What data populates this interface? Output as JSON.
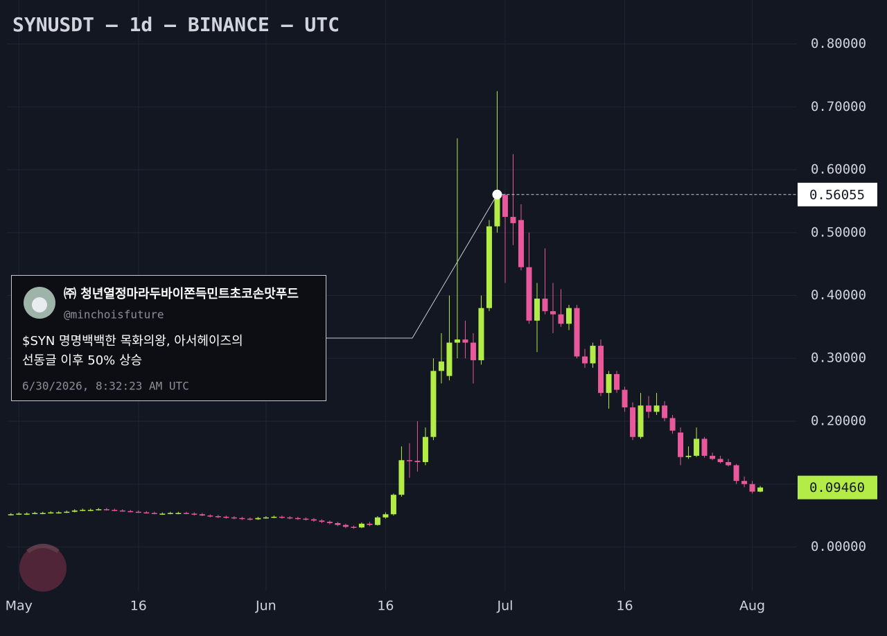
{
  "chart_data": {
    "type": "candlestick",
    "title": "SYNUSDT — 1d — BINANCE — UTC",
    "up_color": "#b3ec46",
    "down_color": "#e8589a",
    "grid": true,
    "x": [
      -1,
      0,
      1,
      2,
      3,
      4,
      5,
      6,
      7,
      8,
      9,
      10,
      11,
      12,
      13,
      14,
      15,
      16,
      17,
      18,
      19,
      20,
      21,
      22,
      23,
      24,
      25,
      26,
      27,
      28,
      29,
      30,
      31,
      32,
      33,
      34,
      35,
      36,
      37,
      38,
      39,
      40,
      41,
      42,
      43,
      44,
      45,
      46,
      47,
      48,
      49,
      50,
      51,
      52,
      53,
      54,
      55,
      56,
      57,
      58,
      59,
      60,
      61,
      62,
      63,
      64,
      65,
      66,
      67,
      68,
      69,
      70,
      71,
      72,
      73,
      74,
      75,
      76,
      77,
      78,
      79,
      80,
      81,
      82,
      83,
      84,
      85,
      86,
      87,
      88,
      89,
      90,
      91,
      92,
      93
    ],
    "open": [
      0.051,
      0.052,
      0.053,
      0.053,
      0.054,
      0.054,
      0.055,
      0.055,
      0.056,
      0.058,
      0.059,
      0.059,
      0.06,
      0.059,
      0.058,
      0.057,
      0.056,
      0.055,
      0.054,
      0.053,
      0.053,
      0.054,
      0.054,
      0.053,
      0.052,
      0.05,
      0.049,
      0.048,
      0.047,
      0.046,
      0.045,
      0.044,
      0.046,
      0.047,
      0.048,
      0.047,
      0.046,
      0.045,
      0.044,
      0.042,
      0.04,
      0.038,
      0.035,
      0.032,
      0.031,
      0.037,
      0.035,
      0.047,
      0.052,
      0.083,
      0.138,
      0.137,
      0.135,
      0.175,
      0.28,
      0.272,
      0.325,
      0.33,
      0.325,
      0.297,
      0.38,
      0.51,
      0.56,
      0.525,
      0.52,
      0.445,
      0.36,
      0.395,
      0.375,
      0.37,
      0.355,
      0.38,
      0.303,
      0.292,
      0.32,
      0.245,
      0.275,
      0.25,
      0.222,
      0.175,
      0.225,
      0.215,
      0.225,
      0.205,
      0.182,
      0.143,
      0.145,
      0.172,
      0.145,
      0.14,
      0.135,
      0.13,
      0.105,
      0.1,
      0.088
    ],
    "high": [
      0.054,
      0.055,
      0.055,
      0.056,
      0.056,
      0.057,
      0.057,
      0.058,
      0.06,
      0.061,
      0.061,
      0.062,
      0.062,
      0.061,
      0.06,
      0.059,
      0.058,
      0.057,
      0.056,
      0.055,
      0.056,
      0.056,
      0.056,
      0.055,
      0.054,
      0.052,
      0.051,
      0.05,
      0.049,
      0.048,
      0.047,
      0.048,
      0.049,
      0.05,
      0.05,
      0.049,
      0.048,
      0.047,
      0.046,
      0.044,
      0.042,
      0.04,
      0.037,
      0.034,
      0.039,
      0.04,
      0.049,
      0.055,
      0.085,
      0.16,
      0.165,
      0.2,
      0.19,
      0.3,
      0.34,
      0.4,
      0.65,
      0.36,
      0.34,
      0.4,
      0.52,
      0.725,
      0.562,
      0.625,
      0.545,
      0.5,
      0.42,
      0.475,
      0.42,
      0.41,
      0.385,
      0.385,
      0.315,
      0.325,
      0.33,
      0.28,
      0.28,
      0.255,
      0.23,
      0.245,
      0.24,
      0.245,
      0.232,
      0.21,
      0.19,
      0.16,
      0.19,
      0.175,
      0.15,
      0.145,
      0.14,
      0.132,
      0.112,
      0.105,
      0.097
    ],
    "low": [
      0.05,
      0.051,
      0.051,
      0.052,
      0.052,
      0.053,
      0.053,
      0.054,
      0.055,
      0.057,
      0.057,
      0.058,
      0.058,
      0.057,
      0.056,
      0.055,
      0.054,
      0.053,
      0.052,
      0.051,
      0.052,
      0.052,
      0.052,
      0.05,
      0.049,
      0.047,
      0.046,
      0.045,
      0.044,
      0.043,
      0.042,
      0.043,
      0.045,
      0.046,
      0.045,
      0.044,
      0.043,
      0.042,
      0.04,
      0.038,
      0.036,
      0.033,
      0.03,
      0.029,
      0.03,
      0.033,
      0.034,
      0.045,
      0.05,
      0.08,
      0.11,
      0.12,
      0.13,
      0.17,
      0.26,
      0.265,
      0.3,
      0.3,
      0.26,
      0.29,
      0.375,
      0.5,
      0.42,
      0.48,
      0.44,
      0.355,
      0.31,
      0.37,
      0.34,
      0.35,
      0.345,
      0.3,
      0.285,
      0.285,
      0.24,
      0.22,
      0.245,
      0.215,
      0.17,
      0.172,
      0.205,
      0.21,
      0.2,
      0.18,
      0.13,
      0.14,
      0.143,
      0.142,
      0.138,
      0.133,
      0.128,
      0.1,
      0.095,
      0.085,
      0.087
    ],
    "close": [
      0.052,
      0.053,
      0.053,
      0.054,
      0.054,
      0.055,
      0.055,
      0.056,
      0.058,
      0.059,
      0.059,
      0.06,
      0.059,
      0.058,
      0.057,
      0.056,
      0.055,
      0.054,
      0.053,
      0.053,
      0.054,
      0.054,
      0.053,
      0.052,
      0.05,
      0.049,
      0.048,
      0.047,
      0.046,
      0.045,
      0.044,
      0.046,
      0.047,
      0.048,
      0.047,
      0.046,
      0.045,
      0.044,
      0.042,
      0.04,
      0.038,
      0.035,
      0.032,
      0.031,
      0.037,
      0.035,
      0.047,
      0.052,
      0.083,
      0.138,
      0.137,
      0.135,
      0.175,
      0.28,
      0.295,
      0.325,
      0.33,
      0.325,
      0.297,
      0.38,
      0.51,
      0.556,
      0.525,
      0.515,
      0.445,
      0.36,
      0.395,
      0.375,
      0.37,
      0.355,
      0.38,
      0.303,
      0.292,
      0.32,
      0.245,
      0.275,
      0.25,
      0.222,
      0.175,
      0.225,
      0.215,
      0.225,
      0.205,
      0.185,
      0.143,
      0.145,
      0.172,
      0.145,
      0.14,
      0.135,
      0.13,
      0.105,
      0.1,
      0.088,
      0.0946
    ],
    "xlim": [
      -1.5,
      97.6
    ],
    "xticks": [
      {
        "value": 0,
        "label": "May"
      },
      {
        "value": 15,
        "label": "16"
      },
      {
        "value": 31,
        "label": "Jun"
      },
      {
        "value": 46,
        "label": "16"
      },
      {
        "value": 61,
        "label": "Jul"
      },
      {
        "value": 76,
        "label": "16"
      },
      {
        "value": 92,
        "label": "Aug"
      }
    ],
    "ylim": [
      -0.07,
      0.87
    ],
    "yticks": [
      {
        "value": 0,
        "label": "0.00000"
      },
      {
        "value": 0.1,
        "label": "0.10000"
      },
      {
        "value": 0.2,
        "label": "0.20000"
      },
      {
        "value": 0.3,
        "label": "0.30000"
      },
      {
        "value": 0.4,
        "label": "0.40000"
      },
      {
        "value": 0.5,
        "label": "0.50000"
      },
      {
        "value": 0.6,
        "label": "0.60000"
      },
      {
        "value": 0.7,
        "label": "0.70000"
      },
      {
        "value": 0.8,
        "label": "0.80000"
      }
    ],
    "last_price": {
      "value": 0.0946,
      "label": "0.09460"
    },
    "annotation": {
      "x": 60,
      "value": 0.56055,
      "author": "㈜ 청년열정마라두바이쫀득민트초코손맛푸드",
      "handle": "@minchoisfuture",
      "text": [
        "$SYN 명명백백한 목화의왕, 아서헤이즈의",
        "선동글 이후 50% 상승"
      ],
      "time": "6/30/2026, 8:32:23 AM UTC"
    }
  }
}
